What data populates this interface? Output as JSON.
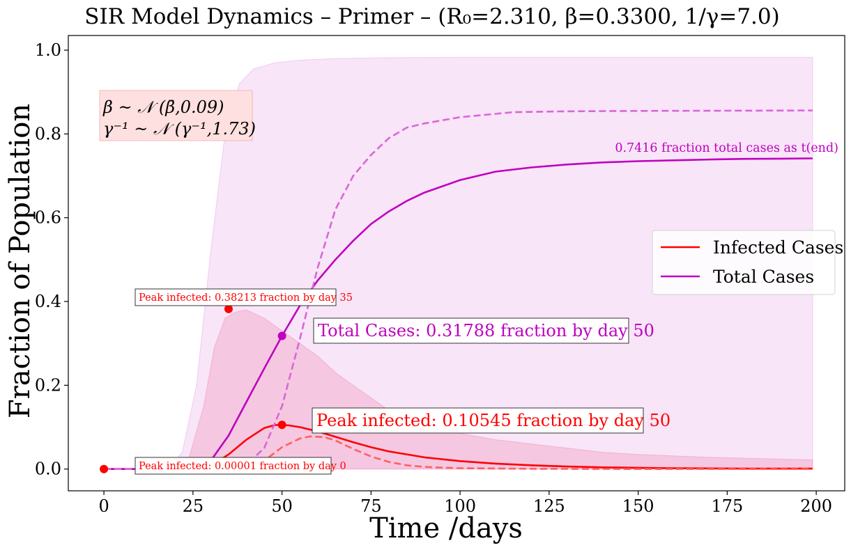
{
  "chart_data": {
    "type": "line",
    "title": "SIR Model Dynamics – Primer – (R₀=2.310, β=0.3300, 1/γ=7.0)",
    "xlabel": "Time /days",
    "ylabel": "Fraction of Population",
    "xlim": [
      -10,
      208
    ],
    "ylim": [
      -0.052,
      1.035
    ],
    "xticks": [
      0,
      25,
      50,
      75,
      100,
      125,
      150,
      175,
      200
    ],
    "xtick_labels": [
      "0",
      "25",
      "50",
      "75",
      "100",
      "125",
      "150",
      "175",
      "200"
    ],
    "yticks": [
      0.0,
      0.2,
      0.4,
      0.6,
      0.8,
      1.0
    ],
    "ytick_labels": [
      "0.0",
      "0.2",
      "0.4",
      "0.6",
      "0.8",
      "1.0"
    ],
    "grid": false,
    "legend": {
      "placement": "center-right",
      "entries": [
        {
          "label": "Infected Cases",
          "color": "#ff0000"
        },
        {
          "label": "Total Cases",
          "color": "#bf00bf"
        }
      ]
    },
    "series": [
      {
        "name": "Infected Cases",
        "style": "solid",
        "color": "#ff0000",
        "x": [
          0,
          10,
          20,
          25,
          28,
          30,
          35,
          40,
          45,
          48,
          50,
          52,
          55,
          60,
          65,
          70,
          75,
          80,
          90,
          100,
          110,
          120,
          130,
          140,
          150,
          160,
          170,
          180,
          190,
          199
        ],
        "values": [
          0.0,
          0.0,
          0.0,
          0.0,
          0.002,
          0.008,
          0.035,
          0.07,
          0.098,
          0.105,
          0.10545,
          0.104,
          0.1,
          0.09,
          0.077,
          0.064,
          0.052,
          0.042,
          0.028,
          0.019,
          0.013,
          0.009,
          0.006,
          0.004,
          0.003,
          0.002,
          0.0015,
          0.001,
          0.001,
          0.001
        ]
      },
      {
        "name": "Total Cases",
        "style": "solid",
        "color": "#bf00bf",
        "x": [
          0,
          10,
          20,
          25,
          28,
          30,
          35,
          40,
          45,
          50,
          55,
          60,
          65,
          70,
          75,
          80,
          85,
          90,
          100,
          110,
          120,
          130,
          140,
          150,
          160,
          170,
          180,
          190,
          199
        ],
        "values": [
          0.0,
          0.0,
          0.0,
          0.0,
          0.005,
          0.02,
          0.08,
          0.16,
          0.24,
          0.31788,
          0.39,
          0.45,
          0.5,
          0.545,
          0.585,
          0.615,
          0.64,
          0.66,
          0.69,
          0.71,
          0.72,
          0.727,
          0.732,
          0.735,
          0.737,
          0.739,
          0.7405,
          0.741,
          0.7416
        ]
      },
      {
        "name": "",
        "style": "dashed",
        "color": "#ff6060",
        "x": [
          0,
          30,
          40,
          45,
          50,
          55,
          58,
          62,
          65,
          70,
          75,
          80,
          85,
          90,
          100,
          120,
          150,
          199
        ],
        "values": [
          0.0,
          0.0,
          0.003,
          0.02,
          0.052,
          0.073,
          0.078,
          0.076,
          0.068,
          0.048,
          0.03,
          0.017,
          0.009,
          0.005,
          0.002,
          0.0005,
          0.0,
          0.0
        ]
      },
      {
        "name": "",
        "style": "dashed",
        "color": "#d966d9",
        "x": [
          0,
          35,
          40,
          45,
          50,
          55,
          60,
          65,
          70,
          75,
          80,
          85,
          90,
          100,
          110,
          115,
          130,
          150,
          199
        ],
        "values": [
          0.0,
          0.0,
          0.01,
          0.05,
          0.15,
          0.31,
          0.48,
          0.62,
          0.7,
          0.75,
          0.79,
          0.815,
          0.825,
          0.84,
          0.848,
          0.852,
          0.854,
          0.855,
          0.856
        ]
      }
    ],
    "bands": [
      {
        "color": "#e8a8e8",
        "opacity": 0.3,
        "x": [
          0,
          18,
          22,
          26,
          30,
          34,
          38,
          42,
          48,
          55,
          65,
          80,
          100,
          120,
          150,
          199
        ],
        "upper": [
          0.0,
          0.0,
          0.04,
          0.2,
          0.52,
          0.8,
          0.92,
          0.955,
          0.97,
          0.976,
          0.98,
          0.982,
          0.983,
          0.983,
          0.983,
          0.983
        ],
        "lower": [
          0.0,
          0.0,
          0.0,
          0.0,
          0.0,
          0.0,
          0.0,
          0.0,
          0.0,
          0.0,
          0.0,
          0.0,
          0.0,
          0.0,
          0.0,
          0.0
        ]
      },
      {
        "color": "#f090b8",
        "opacity": 0.35,
        "x": [
          0,
          20,
          24,
          28,
          31,
          34,
          37,
          40,
          45,
          50,
          55,
          60,
          65,
          70,
          75,
          80,
          90,
          100,
          110,
          120,
          130,
          140,
          150,
          170,
          199
        ],
        "upper": [
          0.0,
          0.0,
          0.03,
          0.15,
          0.29,
          0.36,
          0.375,
          0.38,
          0.36,
          0.33,
          0.3,
          0.27,
          0.23,
          0.2,
          0.17,
          0.14,
          0.11,
          0.085,
          0.07,
          0.06,
          0.05,
          0.04,
          0.035,
          0.028,
          0.022
        ],
        "lower": [
          0.0,
          0.0,
          0.0,
          0.0,
          0.0,
          0.0,
          0.0,
          0.0,
          0.0,
          0.0,
          0.0,
          0.0,
          0.0,
          0.0,
          0.0,
          0.0,
          0.0,
          0.0,
          0.0,
          0.0,
          0.0,
          0.0,
          0.0,
          0.0,
          0.0
        ]
      }
    ],
    "markers": [
      {
        "x": 0,
        "y": 1e-05,
        "color": "#ff0000"
      },
      {
        "x": 35,
        "y": 0.38213,
        "color": "#ff0000"
      },
      {
        "x": 50,
        "y": 0.10545,
        "color": "#ff0000"
      },
      {
        "x": 50,
        "y": 0.31788,
        "color": "#bf00bf"
      }
    ],
    "annotations": {
      "param_box_line1": "β ~ 𝒩 (β̄,0.09)",
      "param_box_line2": "γ⁻¹ ~ 𝒩 (γ⁻¹,1.73)",
      "peak_band": "Peak infected: 0.38213 fraction by day 35",
      "peak_start": "Peak infected: 0.00001 fraction by day 0",
      "peak_main": "Peak infected: 0.10545 fraction by day 50",
      "total_cases": "Total Cases: 0.31788 fraction by day 50",
      "final_total": "0.7416 fraction total cases as t(end)"
    }
  }
}
